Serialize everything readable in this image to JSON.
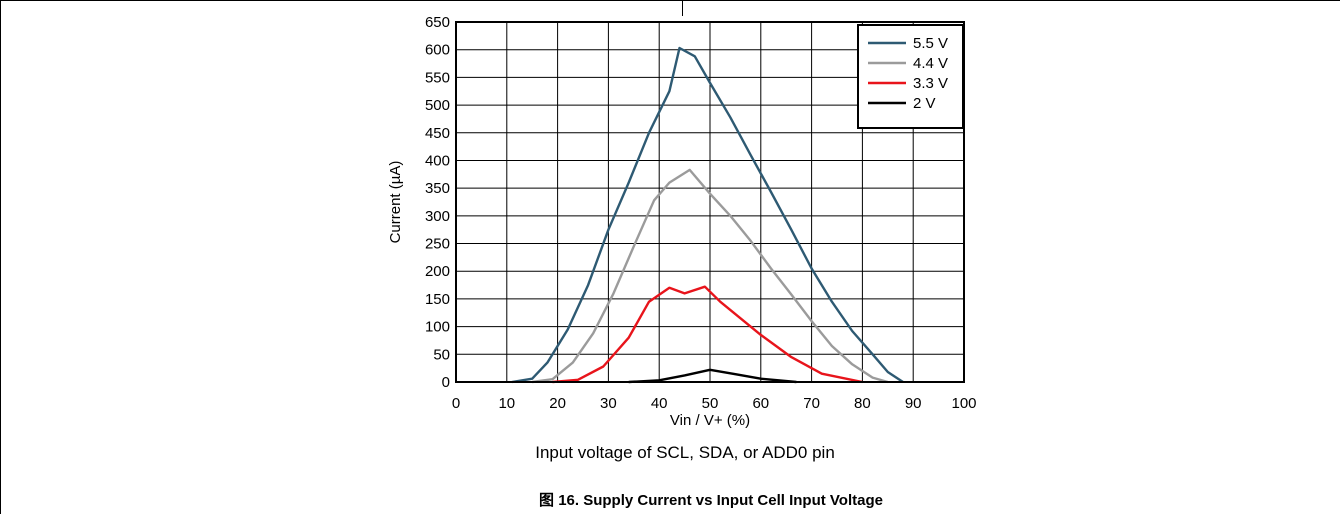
{
  "note": "Input voltage of SCL, SDA, or ADD0 pin",
  "caption": "图 16.  Supply Current vs Input Cell Input Voltage",
  "chart_data": {
    "type": "line",
    "title": "",
    "xlabel": "Vin / V+ (%)",
    "ylabel": "Current (µA)",
    "xlim": [
      0,
      100
    ],
    "ylim": [
      0,
      650
    ],
    "xticks": [
      0,
      10,
      20,
      30,
      40,
      50,
      60,
      70,
      80,
      90,
      100
    ],
    "yticks": [
      0,
      50,
      100,
      150,
      200,
      250,
      300,
      350,
      400,
      450,
      500,
      550,
      600,
      650
    ],
    "grid": true,
    "legend_position": "top-right",
    "series": [
      {
        "name": "5.5 V",
        "color": "#2e5a73",
        "x": [
          11,
          15,
          18,
          22,
          26,
          30,
          34,
          38,
          42,
          44,
          47,
          50,
          54,
          58,
          62,
          66,
          70,
          74,
          78,
          82,
          85,
          88
        ],
        "y": [
          0,
          6,
          35,
          95,
          175,
          275,
          360,
          450,
          525,
          603,
          588,
          540,
          478,
          410,
          343,
          275,
          205,
          145,
          92,
          50,
          18,
          0
        ]
      },
      {
        "name": "4.4 V",
        "color": "#9b9b9b",
        "x": [
          15,
          19,
          23,
          27,
          31,
          35,
          39,
          42,
          46,
          50,
          54,
          58,
          62,
          66,
          70,
          74,
          78,
          82,
          85
        ],
        "y": [
          0,
          5,
          35,
          88,
          160,
          245,
          328,
          360,
          383,
          340,
          300,
          255,
          205,
          158,
          110,
          65,
          32,
          8,
          0
        ]
      },
      {
        "name": "3.3 V",
        "color": "#e8141b",
        "x": [
          19,
          24,
          29,
          34,
          38,
          42,
          45,
          49,
          52,
          56,
          60,
          66,
          72,
          80
        ],
        "y": [
          0,
          4,
          28,
          80,
          145,
          170,
          160,
          172,
          145,
          115,
          85,
          45,
          15,
          0
        ]
      },
      {
        "name": "2 V",
        "color": "#000000",
        "x": [
          34,
          40,
          45,
          50,
          55,
          60,
          67
        ],
        "y": [
          0,
          3,
          12,
          22,
          14,
          6,
          0
        ]
      }
    ]
  }
}
